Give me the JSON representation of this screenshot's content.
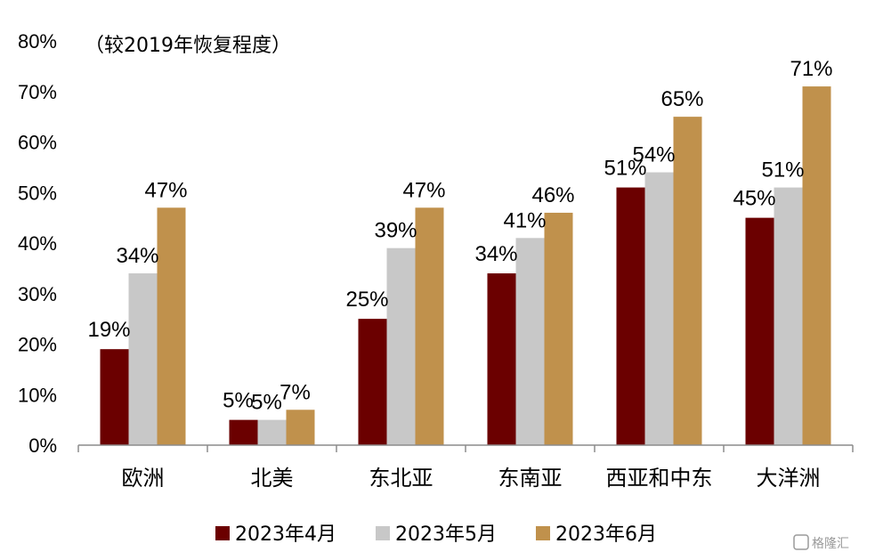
{
  "chart_data": {
    "type": "bar",
    "subtitle": "（较2019年恢复程度）",
    "categories": [
      "欧洲",
      "北美",
      "东北亚",
      "东南亚",
      "西亚和中东",
      "大洋洲"
    ],
    "series": [
      {
        "name": "2023年4月",
        "color": "#6b0000",
        "values": [
          19,
          5,
          25,
          34,
          51,
          45
        ],
        "labels": [
          "19%",
          "5%",
          "25%",
          "34%",
          "51%",
          "45%"
        ]
      },
      {
        "name": "2023年5月",
        "color": "#c8c8c8",
        "values": [
          34,
          5,
          39,
          41,
          54,
          51
        ],
        "labels": [
          "34%",
          "5%",
          "39%",
          "41%",
          "54%",
          "51%"
        ]
      },
      {
        "name": "2023年6月",
        "color": "#c0914c",
        "values": [
          47,
          7,
          47,
          46,
          65,
          71
        ],
        "labels": [
          "47%",
          "7%",
          "47%",
          "46%",
          "65%",
          "71%"
        ]
      }
    ],
    "ylim": [
      0,
      80
    ],
    "yticks": [
      "0%",
      "10%",
      "20%",
      "30%",
      "40%",
      "50%",
      "60%",
      "70%",
      "80%"
    ],
    "grid": false,
    "legend_position": "bottom",
    "watermark": "格隆汇"
  }
}
